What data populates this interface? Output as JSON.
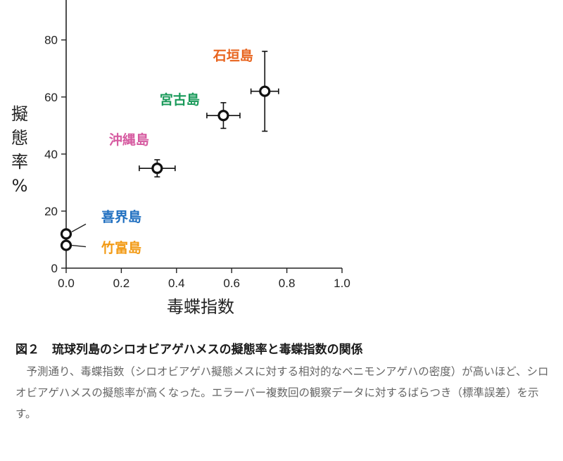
{
  "chart_data": {
    "type": "scatter",
    "xlabel": "毒蝶指数",
    "ylabel": "擬態率%",
    "xlim": [
      0,
      1.0
    ],
    "ylim": [
      0,
      94
    ],
    "xticks": [
      "0.0",
      "0.2",
      "0.4",
      "0.6",
      "0.8",
      "1.0"
    ],
    "yticks": [
      "0",
      "20",
      "40",
      "60",
      "80"
    ],
    "grid": false,
    "points": [
      {
        "label": "石垣島",
        "x": 0.72,
        "y": 62,
        "xerr": 0.05,
        "yerr_low": 14,
        "yerr_high": 14,
        "color": "#e8641e",
        "label_pos": "upper-left"
      },
      {
        "label": "宮古島",
        "x": 0.57,
        "y": 53.5,
        "xerr": 0.06,
        "yerr_low": 4.5,
        "yerr_high": 4.5,
        "color": "#1a9a5a",
        "label_pos": "upper-left"
      },
      {
        "label": "沖縄島",
        "x": 0.33,
        "y": 35,
        "xerr": 0.065,
        "yerr_low": 3,
        "yerr_high": 3,
        "color": "#d65aa0",
        "label_pos": "upper-left"
      },
      {
        "label": "喜界島",
        "x": 0.0,
        "y": 12,
        "xerr": 0,
        "yerr_low": 0,
        "yerr_high": 0,
        "color": "#1f6fc0",
        "label_pos": "right"
      },
      {
        "label": "竹富島",
        "x": 0.0,
        "y": 8,
        "xerr": 0,
        "yerr_low": 0,
        "yerr_high": 0,
        "color": "#f29a14",
        "label_pos": "right"
      }
    ]
  },
  "caption": {
    "number": "図２",
    "title": "琉球列島のシロオビアゲハメスの擬態率と毒蝶指数の関係",
    "body": "予測通り、毒蝶指数（シロオビアゲハ擬態メスに対する相対的なベニモンアゲハの密度）が高いほど、シロオビアゲハメスの擬態率が高くなった。エラーバー複数回の観察データに対するばらつき（標準誤差）を示す。"
  }
}
